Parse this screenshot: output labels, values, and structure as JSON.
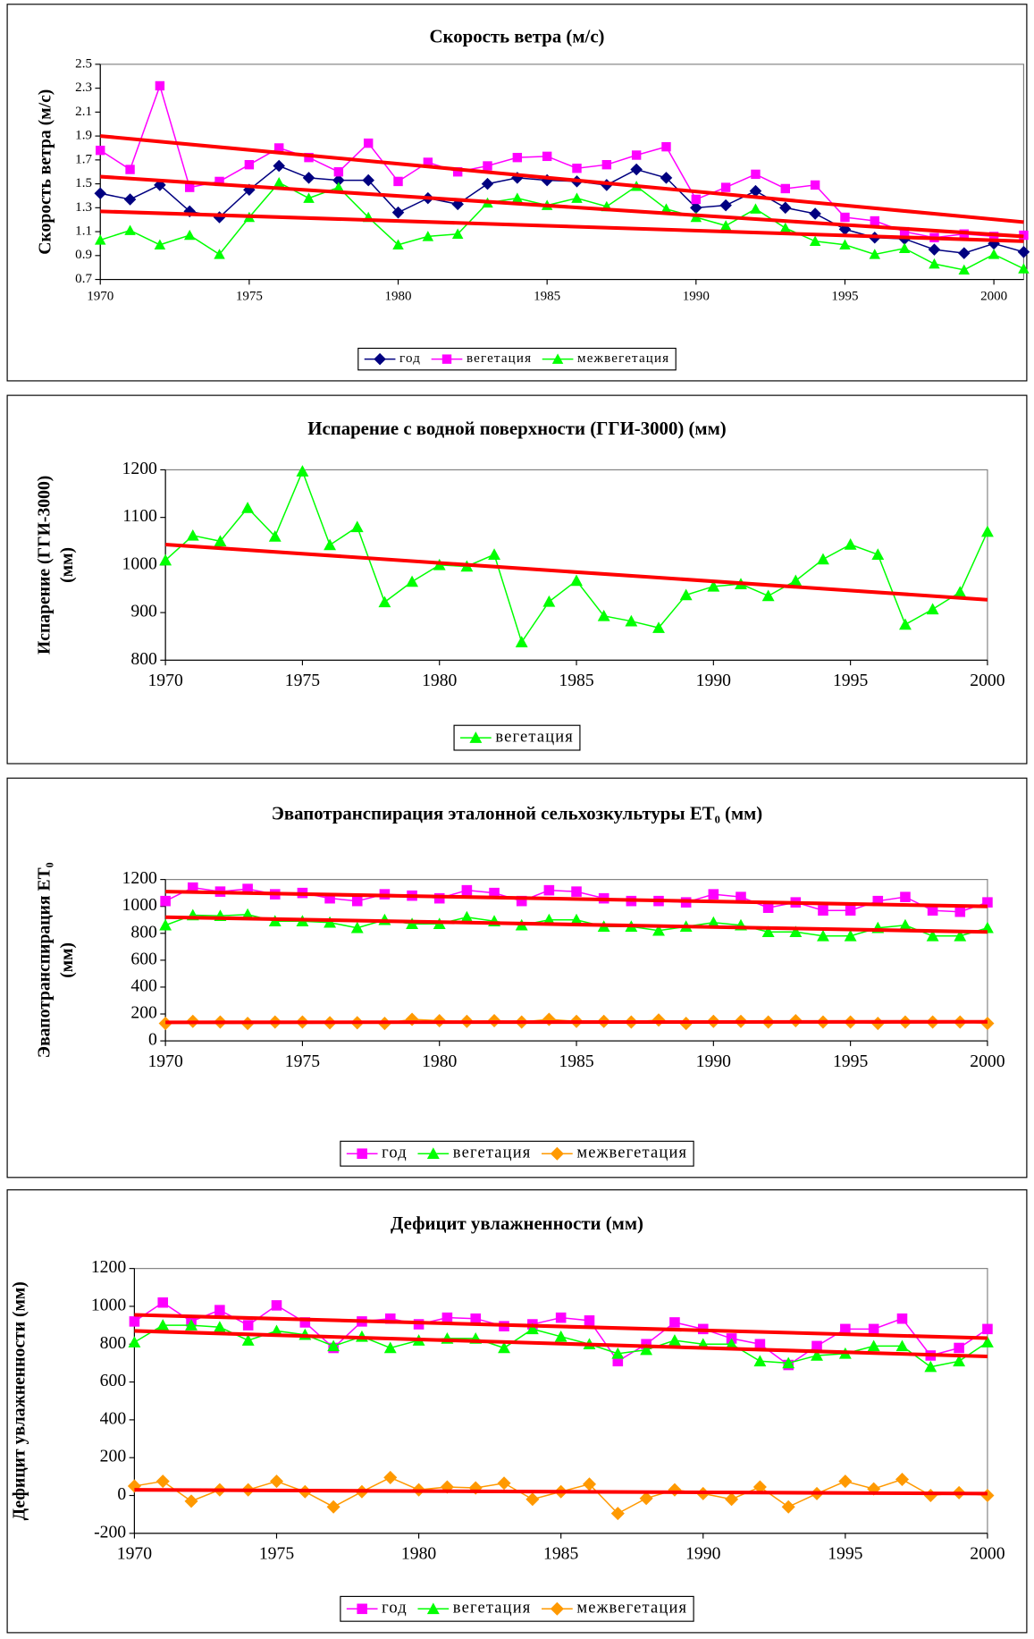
{
  "chart_data": [
    {
      "type": "line",
      "title": "Скорость ветра (м/с)",
      "ylabel": [
        "Скорость ветра (м/с)"
      ],
      "x": [
        1970,
        1971,
        1972,
        1973,
        1974,
        1975,
        1976,
        1977,
        1978,
        1979,
        1980,
        1981,
        1982,
        1983,
        1984,
        1985,
        1986,
        1987,
        1988,
        1989,
        1990,
        1991,
        1992,
        1993,
        1994,
        1995,
        1996,
        1997,
        1998,
        1999,
        2000,
        2001
      ],
      "xlim": [
        1970,
        2001
      ],
      "xticks": [
        1970,
        1975,
        1980,
        1985,
        1990,
        1995,
        2000
      ],
      "ylim": [
        0.7,
        2.5
      ],
      "yticks": [
        0.7,
        0.9,
        1.1,
        1.3,
        1.5,
        1.7,
        1.9,
        2.1,
        2.3,
        2.5
      ],
      "grid": false,
      "legend": "bottom",
      "series": [
        {
          "name": "год",
          "color": "#000080",
          "marker": "diamond",
          "values": [
            1.42,
            1.37,
            1.49,
            1.27,
            1.22,
            1.45,
            1.65,
            1.55,
            1.53,
            1.53,
            1.26,
            1.38,
            1.33,
            1.5,
            1.55,
            1.53,
            1.52,
            1.49,
            1.62,
            1.55,
            1.3,
            1.32,
            1.44,
            1.3,
            1.25,
            1.12,
            1.05,
            1.04,
            0.95,
            0.92,
            1.0,
            0.93
          ]
        },
        {
          "name": "вегетация",
          "color": "#ff00ff",
          "marker": "square",
          "values": [
            1.78,
            1.62,
            2.32,
            1.47,
            1.52,
            1.66,
            1.8,
            1.72,
            1.6,
            1.84,
            1.52,
            1.68,
            1.6,
            1.65,
            1.72,
            1.73,
            1.63,
            1.66,
            1.74,
            1.81,
            1.37,
            1.47,
            1.58,
            1.46,
            1.49,
            1.22,
            1.19,
            1.1,
            1.05,
            1.08,
            1.06,
            1.07
          ]
        },
        {
          "name": "межвегетация",
          "color": "#00ff00",
          "marker": "triangle",
          "values": [
            1.03,
            1.11,
            0.99,
            1.07,
            0.91,
            1.22,
            1.51,
            1.38,
            1.47,
            1.22,
            0.99,
            1.06,
            1.08,
            1.34,
            1.38,
            1.32,
            1.38,
            1.31,
            1.48,
            1.29,
            1.22,
            1.15,
            1.29,
            1.13,
            1.02,
            0.99,
            0.91,
            0.96,
            0.83,
            0.78,
            0.91,
            0.79
          ]
        }
      ],
      "trendlines": [
        {
          "color": "#ff0000",
          "x": [
            1970,
            2001
          ],
          "values": [
            1.9,
            1.18
          ]
        },
        {
          "color": "#ff0000",
          "x": [
            1970,
            2001
          ],
          "values": [
            1.56,
            1.06
          ]
        },
        {
          "color": "#ff0000",
          "x": [
            1970,
            2001
          ],
          "values": [
            1.27,
            1.02
          ]
        }
      ]
    },
    {
      "type": "line",
      "title": "Испарение с водной поверхности (ГГИ-3000) (мм)",
      "ylabel": [
        "Испарение (ГГИ-3000)",
        "(мм)"
      ],
      "x": [
        1970,
        1971,
        1972,
        1973,
        1974,
        1975,
        1976,
        1977,
        1978,
        1979,
        1980,
        1981,
        1982,
        1983,
        1984,
        1985,
        1986,
        1987,
        1988,
        1989,
        1990,
        1991,
        1992,
        1993,
        1994,
        1995,
        1996,
        1997,
        1998,
        1999,
        2000
      ],
      "xlim": [
        1970,
        2000
      ],
      "xticks": [
        1970,
        1975,
        1980,
        1985,
        1990,
        1995,
        2000
      ],
      "ylim": [
        800,
        1200
      ],
      "yticks": [
        800,
        900,
        1000,
        1100,
        1200
      ],
      "grid": false,
      "legend": "bottom",
      "series": [
        {
          "name": "вегетация",
          "color": "#00ff00",
          "marker": "triangle",
          "values": [
            1010,
            1062,
            1050,
            1120,
            1060,
            1197,
            1042,
            1080,
            922,
            965,
            1000,
            997,
            1022,
            838,
            923,
            967,
            893,
            882,
            868,
            937,
            955,
            960,
            935,
            967,
            1012,
            1043,
            1022,
            875,
            907,
            943,
            1070
          ]
        }
      ],
      "trendlines": [
        {
          "color": "#ff0000",
          "x": [
            1970,
            2000
          ],
          "values": [
            1043,
            927
          ]
        }
      ]
    },
    {
      "type": "line",
      "title": "Эвапотранспирация эталонной сельхозкультуры ET₀ (мм)",
      "ylabel": [
        "Эвапотранспирация ET₀",
        "(мм)"
      ],
      "x": [
        1970,
        1971,
        1972,
        1973,
        1974,
        1975,
        1976,
        1977,
        1978,
        1979,
        1980,
        1981,
        1982,
        1983,
        1984,
        1985,
        1986,
        1987,
        1988,
        1989,
        1990,
        1991,
        1992,
        1993,
        1994,
        1995,
        1996,
        1997,
        1998,
        1999,
        2000
      ],
      "xlim": [
        1970,
        2000
      ],
      "xticks": [
        1970,
        1975,
        1980,
        1985,
        1990,
        1995,
        2000
      ],
      "ylim": [
        0,
        1200
      ],
      "yticks": [
        0,
        200,
        400,
        600,
        800,
        1000,
        1200
      ],
      "grid": false,
      "legend": "bottom",
      "series": [
        {
          "name": "год",
          "color": "#ff00ff",
          "marker": "square",
          "values": [
            1040,
            1140,
            1110,
            1130,
            1090,
            1100,
            1060,
            1040,
            1090,
            1080,
            1060,
            1120,
            1100,
            1040,
            1120,
            1110,
            1060,
            1040,
            1040,
            1030,
            1090,
            1070,
            990,
            1030,
            970,
            970,
            1040,
            1070,
            970,
            960,
            1030
          ]
        },
        {
          "name": "вегетация",
          "color": "#00ff00",
          "marker": "triangle",
          "values": [
            860,
            935,
            930,
            940,
            890,
            890,
            880,
            840,
            900,
            870,
            870,
            920,
            890,
            860,
            900,
            900,
            850,
            850,
            820,
            850,
            880,
            860,
            810,
            810,
            780,
            780,
            840,
            860,
            780,
            780,
            840
          ]
        },
        {
          "name": "межвегетация",
          "color": "#ff9900",
          "marker": "diamond",
          "values": [
            130,
            145,
            140,
            130,
            140,
            140,
            135,
            135,
            130,
            160,
            150,
            145,
            150,
            140,
            160,
            145,
            145,
            140,
            155,
            130,
            145,
            145,
            140,
            150,
            140,
            140,
            130,
            140,
            140,
            140,
            130
          ]
        }
      ],
      "trendlines": [
        {
          "color": "#ff0000",
          "x": [
            1970,
            2000
          ],
          "values": [
            1110,
            1000
          ]
        },
        {
          "color": "#ff0000",
          "x": [
            1970,
            2000
          ],
          "values": [
            920,
            810
          ]
        },
        {
          "color": "#ff0000",
          "x": [
            1970,
            2000
          ],
          "values": [
            138,
            142
          ]
        }
      ]
    },
    {
      "type": "line",
      "title": "Дефицит увлажненности (мм)",
      "ylabel": [
        "Дефицит увлажненности (мм)"
      ],
      "x": [
        1970,
        1971,
        1972,
        1973,
        1974,
        1975,
        1976,
        1977,
        1978,
        1979,
        1980,
        1981,
        1982,
        1983,
        1984,
        1985,
        1986,
        1987,
        1988,
        1989,
        1990,
        1991,
        1992,
        1993,
        1994,
        1995,
        1996,
        1997,
        1998,
        1999,
        2000
      ],
      "xlim": [
        1970,
        2000
      ],
      "xticks": [
        1970,
        1975,
        1980,
        1985,
        1990,
        1995,
        2000
      ],
      "ylim": [
        -200,
        1200
      ],
      "yticks": [
        -200,
        0,
        200,
        400,
        600,
        800,
        1000,
        1200
      ],
      "grid": false,
      "legend": "bottom",
      "series": [
        {
          "name": "год",
          "color": "#ff00ff",
          "marker": "square",
          "values": [
            920,
            1020,
            920,
            980,
            900,
            1005,
            915,
            780,
            920,
            935,
            905,
            940,
            935,
            895,
            905,
            940,
            925,
            710,
            800,
            915,
            880,
            830,
            800,
            690,
            790,
            880,
            880,
            935,
            740,
            780,
            880
          ]
        },
        {
          "name": "вегетация",
          "color": "#00ff00",
          "marker": "triangle",
          "values": [
            810,
            900,
            900,
            890,
            820,
            870,
            850,
            790,
            840,
            780,
            820,
            830,
            830,
            780,
            880,
            840,
            800,
            750,
            770,
            820,
            800,
            800,
            710,
            700,
            740,
            750,
            790,
            790,
            680,
            710,
            810
          ]
        },
        {
          "name": "межвегетация",
          "color": "#ff9900",
          "marker": "diamond",
          "values": [
            50,
            75,
            -30,
            30,
            30,
            75,
            20,
            -60,
            20,
            95,
            30,
            45,
            40,
            65,
            -20,
            20,
            60,
            -95,
            -15,
            30,
            10,
            -20,
            45,
            -60,
            10,
            75,
            35,
            85,
            0,
            15,
            0
          ]
        }
      ],
      "trendlines": [
        {
          "color": "#ff0000",
          "x": [
            1970,
            2000
          ],
          "values": [
            955,
            832
          ]
        },
        {
          "color": "#ff0000",
          "x": [
            1970,
            2000
          ],
          "values": [
            870,
            735
          ]
        },
        {
          "color": "#ff0000",
          "x": [
            1970,
            2000
          ],
          "values": [
            30,
            10
          ]
        }
      ]
    }
  ]
}
